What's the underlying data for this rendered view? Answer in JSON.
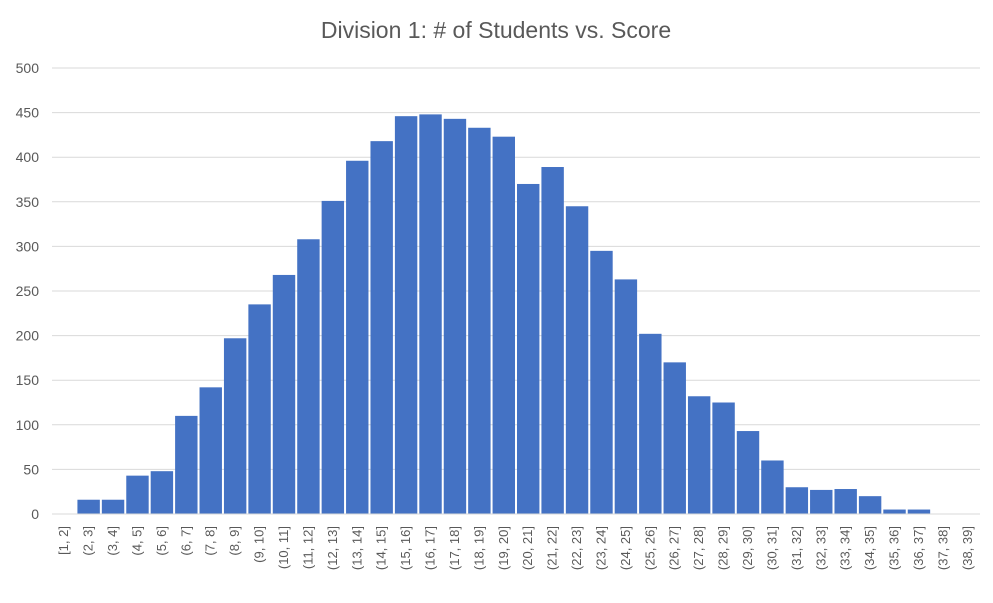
{
  "chart_data": {
    "type": "bar",
    "title": "Division 1: # of Students vs. Score",
    "xlabel": "",
    "ylabel": "",
    "ylim": [
      0,
      500
    ],
    "yticks": [
      0,
      50,
      100,
      150,
      200,
      250,
      300,
      350,
      400,
      450,
      500
    ],
    "grid": true,
    "legend": "none",
    "bar_color": "#4472C4",
    "categories": [
      "[1, 2]",
      "(2, 3]",
      "(3, 4]",
      "(4, 5]",
      "(5, 6]",
      "(6, 7]",
      "(7, 8]",
      "(8, 9]",
      "(9, 10]",
      "(10, 11]",
      "(11, 12]",
      "(12, 13]",
      "(13, 14]",
      "(14, 15]",
      "(15, 16]",
      "(16, 17]",
      "(17, 18]",
      "(18, 19]",
      "(19, 20]",
      "(20, 21]",
      "(21, 22]",
      "(22, 23]",
      "(23, 24]",
      "(24, 25]",
      "(25, 26]",
      "(26, 27]",
      "(27, 28]",
      "(28, 29]",
      "(29, 30]",
      "(30, 31]",
      "(31, 32]",
      "(32, 33]",
      "(33, 34]",
      "(34, 35]",
      "(35, 36]",
      "(36, 37]",
      "(37, 38]",
      "(38, 39]"
    ],
    "values": [
      0,
      16,
      16,
      43,
      48,
      110,
      142,
      197,
      235,
      268,
      308,
      351,
      396,
      418,
      446,
      448,
      443,
      433,
      423,
      370,
      389,
      345,
      295,
      263,
      202,
      170,
      132,
      125,
      93,
      60,
      30,
      27,
      28,
      20,
      5,
      5,
      0,
      0
    ]
  }
}
